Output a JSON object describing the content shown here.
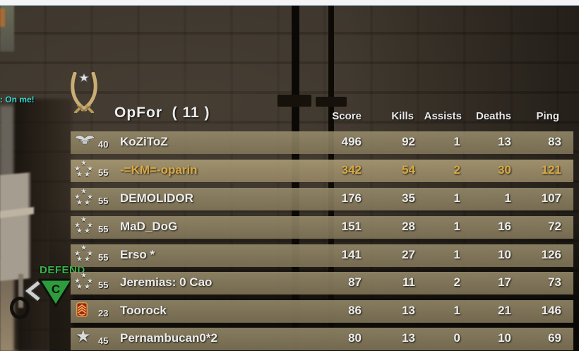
{
  "hud": {
    "chat_message": ": On me!",
    "chat_color": "#38d7cf",
    "objective": {
      "action": "DEFEND",
      "letter": "C",
      "marker_color": "#2e9c3c",
      "chevron_icon": "chevron-left"
    }
  },
  "scoreboard": {
    "team_name": "OpFor",
    "team_count": "( 11 )",
    "emblem_icon": "opfor-crossed-sabers",
    "columns": [
      "Score",
      "Kills",
      "Assists",
      "Deaths",
      "Ping"
    ],
    "column_keys": [
      "score",
      "kills",
      "assists",
      "deaths",
      "ping"
    ],
    "self_highlight_color": "#d9a945",
    "players": [
      {
        "rank": 40,
        "rank_icon": "eagle-insignia",
        "name": "KoZiToZ",
        "score": 496,
        "kills": 92,
        "assists": 1,
        "deaths": 13,
        "ping": 83,
        "is_self": false
      },
      {
        "rank": 55,
        "rank_icon": "five-star-circle",
        "name": "-=KM=-oparin",
        "score": 342,
        "kills": 54,
        "assists": 2,
        "deaths": 30,
        "ping": 121,
        "is_self": true
      },
      {
        "rank": 55,
        "rank_icon": "five-star-circle",
        "name": "DEMOLIDOR",
        "score": 176,
        "kills": 35,
        "assists": 1,
        "deaths": 1,
        "ping": 107,
        "is_self": false
      },
      {
        "rank": 55,
        "rank_icon": "five-star-circle",
        "name": "MaD_DoG",
        "score": 151,
        "kills": 28,
        "assists": 1,
        "deaths": 16,
        "ping": 72,
        "is_self": false
      },
      {
        "rank": 55,
        "rank_icon": "five-star-circle",
        "name": "Erso *",
        "score": 141,
        "kills": 27,
        "assists": 1,
        "deaths": 10,
        "ping": 126,
        "is_self": false
      },
      {
        "rank": 55,
        "rank_icon": "five-star-circle",
        "name": "Jeremias: 0 Cao",
        "score": 87,
        "kills": 11,
        "assists": 2,
        "deaths": 17,
        "ping": 73,
        "is_self": false
      },
      {
        "rank": 23,
        "rank_icon": "chevron-badge",
        "name": "Toorock",
        "score": 86,
        "kills": 13,
        "assists": 1,
        "deaths": 21,
        "ping": 146,
        "is_self": false
      },
      {
        "rank": 45,
        "rank_icon": "single-star",
        "name": "Pernambucan0*2",
        "score": 80,
        "kills": 13,
        "assists": 0,
        "deaths": 10,
        "ping": 69,
        "is_self": false
      }
    ]
  }
}
